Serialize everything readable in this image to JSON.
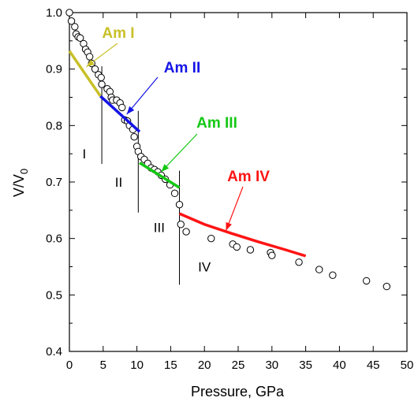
{
  "chart_data": {
    "type": "scatter",
    "title": "",
    "xlabel": "Pressure, GPa",
    "ylabel": "V/V",
    "ylabel_sub": "0",
    "xlim": [
      0,
      50
    ],
    "ylim": [
      0.4,
      1.0
    ],
    "x_ticks": [
      0,
      5,
      10,
      15,
      20,
      25,
      30,
      35,
      40,
      45,
      50
    ],
    "y_ticks": [
      0.4,
      0.5,
      0.6,
      0.7,
      0.8,
      0.9,
      1.0
    ],
    "x_tick_labels": [
      "0",
      "5",
      "10",
      "15",
      "20",
      "25",
      "30",
      "35",
      "40",
      "45",
      "50"
    ],
    "y_tick_labels": [
      "0.4",
      "0.5",
      "0.6",
      "0.7",
      "0.8",
      "0.9",
      "1.0"
    ],
    "grid": false,
    "data_points": {
      "x": [
        0,
        0.3,
        0.8,
        1.0,
        1.3,
        1.6,
        2.1,
        2.4,
        2.7,
        3.0,
        3.3,
        3.8,
        4.3,
        4.7,
        4.8,
        5.6,
        6.0,
        6.2,
        6.4,
        7.0,
        7.5,
        7.8,
        8.2,
        8.6,
        8.9,
        9.4,
        9.6,
        10.0,
        10.2,
        10.6,
        11.1,
        11.6,
        12.1,
        12.6,
        13.1,
        13.6,
        14.2,
        14.9,
        15.6,
        16.3,
        16.5,
        17.3,
        21.0,
        24.2,
        24.8,
        26.8,
        29.8,
        30.0,
        34.0,
        37.0,
        39.0,
        44.0,
        47.0
      ],
      "y": [
        1.0,
        0.985,
        0.975,
        0.962,
        0.957,
        0.955,
        0.945,
        0.935,
        0.93,
        0.922,
        0.91,
        0.9,
        0.89,
        0.885,
        0.873,
        0.865,
        0.86,
        0.85,
        0.845,
        0.845,
        0.84,
        0.832,
        0.81,
        0.808,
        0.8,
        0.793,
        0.78,
        0.763,
        0.754,
        0.745,
        0.74,
        0.733,
        0.725,
        0.722,
        0.718,
        0.712,
        0.705,
        0.695,
        0.68,
        0.66,
        0.625,
        0.612,
        0.6,
        0.59,
        0.585,
        0.58,
        0.575,
        0.57,
        0.558,
        0.545,
        0.535,
        0.525,
        0.515
      ]
    },
    "series": [
      {
        "name": "Am I",
        "color": "#c8c028",
        "x": [
          0,
          4.6
        ],
        "y": [
          0.932,
          0.852
        ]
      },
      {
        "name": "Am II",
        "color": "#1414e6",
        "x": [
          4.6,
          10.4
        ],
        "y": [
          0.852,
          0.789
        ]
      },
      {
        "name": "Am III",
        "color": "#14c814",
        "x": [
          10.4,
          16.3
        ],
        "y": [
          0.734,
          0.69
        ]
      },
      {
        "name": "Am IV",
        "color": "#ff1414",
        "x": [
          16.3,
          20,
          24,
          28,
          32,
          35
        ],
        "y": [
          0.644,
          0.625,
          0.609,
          0.594,
          0.58,
          0.569
        ]
      }
    ],
    "annotations": [
      {
        "text": "Am I",
        "color": "#c8c028",
        "target": [
          2.5,
          0.904
        ]
      },
      {
        "text": "Am II",
        "color": "#1414e6",
        "target": [
          8.5,
          0.82
        ]
      },
      {
        "text": "Am III",
        "color": "#14c814",
        "target": [
          13.6,
          0.718
        ]
      },
      {
        "text": "Am IV",
        "color": "#ff1414",
        "target": [
          23.2,
          0.614
        ]
      }
    ],
    "phase_boundaries": [
      {
        "x": 4.8,
        "y_range": [
          0.732,
          0.905
        ]
      },
      {
        "x": 10.2,
        "y_range": [
          0.646,
          0.826
        ]
      },
      {
        "x": 16.3,
        "y_range": [
          0.518,
          0.72
        ]
      }
    ],
    "regions": [
      {
        "label": "I",
        "x": 2.2,
        "y": 0.75
      },
      {
        "label": "II",
        "x": 7.3,
        "y": 0.7
      },
      {
        "label": "III",
        "x": 13.3,
        "y": 0.62
      },
      {
        "label": "IV",
        "x": 20.0,
        "y": 0.55
      }
    ]
  }
}
